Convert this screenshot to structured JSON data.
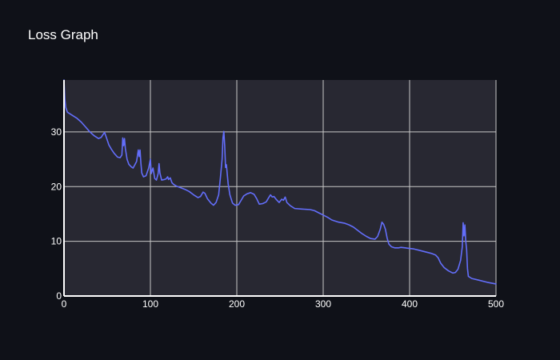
{
  "title": "Loss Graph",
  "colors": {
    "page_background": "#0f1118",
    "plot_background": "#282832",
    "grid": "#c8c8c8",
    "axis": "#ffffff",
    "text": "#ffffff",
    "line": "#636efa"
  },
  "chart_data": {
    "type": "line",
    "title": "Loss Graph",
    "xlabel": "",
    "ylabel": "",
    "xlim": [
      0,
      500
    ],
    "ylim": [
      0,
      39.5
    ],
    "x_ticks": [
      0,
      100,
      200,
      300,
      400,
      500
    ],
    "y_ticks": [
      0,
      10,
      20,
      30
    ],
    "grid": true,
    "legend": "none",
    "series": [
      {
        "color": "#636efa",
        "points": [
          [
            0,
            39.5
          ],
          [
            1,
            36
          ],
          [
            2,
            34.5
          ],
          [
            4,
            33.6
          ],
          [
            10,
            33
          ],
          [
            15,
            32.5
          ],
          [
            20,
            31.8
          ],
          [
            25,
            30.9
          ],
          [
            30,
            30
          ],
          [
            35,
            29.3
          ],
          [
            40,
            28.8
          ],
          [
            43,
            29
          ],
          [
            45,
            29.5
          ],
          [
            47,
            29.9
          ],
          [
            49,
            29
          ],
          [
            52,
            27.6
          ],
          [
            55,
            26.8
          ],
          [
            58,
            26.1
          ],
          [
            62,
            25.4
          ],
          [
            65,
            25.3
          ],
          [
            67,
            25.8
          ],
          [
            68,
            28.9
          ],
          [
            69,
            27.5
          ],
          [
            70,
            28.8
          ],
          [
            71,
            27
          ],
          [
            73,
            25
          ],
          [
            75,
            24.1
          ],
          [
            78,
            23.6
          ],
          [
            80,
            23.4
          ],
          [
            82,
            24
          ],
          [
            84,
            24.6
          ],
          [
            86,
            26.7
          ],
          [
            87,
            25.5
          ],
          [
            88,
            26.7
          ],
          [
            89,
            24.3
          ],
          [
            90,
            22.5
          ],
          [
            92,
            21.8
          ],
          [
            95,
            22
          ],
          [
            98,
            23.4
          ],
          [
            100,
            25
          ],
          [
            101,
            22.4
          ],
          [
            103,
            23.4
          ],
          [
            105,
            21.5
          ],
          [
            107,
            21.2
          ],
          [
            109,
            22.4
          ],
          [
            110,
            24.2
          ],
          [
            111,
            22.5
          ],
          [
            113,
            21.2
          ],
          [
            116,
            21.3
          ],
          [
            118,
            21.4
          ],
          [
            120,
            21.8
          ],
          [
            121,
            21.3
          ],
          [
            123,
            21.6
          ],
          [
            125,
            20.7
          ],
          [
            127,
            20.4
          ],
          [
            130,
            20.1
          ],
          [
            135,
            19.8
          ],
          [
            140,
            19.5
          ],
          [
            145,
            19.1
          ],
          [
            150,
            18.5
          ],
          [
            155,
            18
          ],
          [
            158,
            18.2
          ],
          [
            161,
            19
          ],
          [
            163,
            18.8
          ],
          [
            166,
            17.8
          ],
          [
            170,
            17
          ],
          [
            173,
            16.6
          ],
          [
            176,
            17.1
          ],
          [
            179,
            18.5
          ],
          [
            181,
            21.6
          ],
          [
            183,
            25
          ],
          [
            184,
            28.9
          ],
          [
            185,
            30.1
          ],
          [
            186,
            27.5
          ],
          [
            187,
            23.5
          ],
          [
            188,
            24
          ],
          [
            189,
            22.2
          ],
          [
            190,
            20.5
          ],
          [
            192,
            18.5
          ],
          [
            195,
            17
          ],
          [
            198,
            16.6
          ],
          [
            202,
            16.7
          ],
          [
            205,
            17.5
          ],
          [
            208,
            18.3
          ],
          [
            212,
            18.7
          ],
          [
            216,
            18.9
          ],
          [
            220,
            18.6
          ],
          [
            223,
            17.8
          ],
          [
            226,
            16.8
          ],
          [
            230,
            16.9
          ],
          [
            234,
            17.2
          ],
          [
            237,
            18
          ],
          [
            239,
            18.5
          ],
          [
            241,
            18.1
          ],
          [
            243,
            18.2
          ],
          [
            246,
            17.6
          ],
          [
            249,
            17.1
          ],
          [
            252,
            17.7
          ],
          [
            254,
            17.5
          ],
          [
            256,
            18.1
          ],
          [
            258,
            17.1
          ],
          [
            262,
            16.5
          ],
          [
            267,
            16
          ],
          [
            275,
            15.9
          ],
          [
            285,
            15.8
          ],
          [
            290,
            15.6
          ],
          [
            295,
            15.2
          ],
          [
            300,
            14.8
          ],
          [
            305,
            14.4
          ],
          [
            310,
            13.9
          ],
          [
            318,
            13.5
          ],
          [
            325,
            13.3
          ],
          [
            330,
            13
          ],
          [
            335,
            12.6
          ],
          [
            340,
            12
          ],
          [
            345,
            11.4
          ],
          [
            350,
            10.9
          ],
          [
            355,
            10.5
          ],
          [
            360,
            10.4
          ],
          [
            363,
            10.9
          ],
          [
            366,
            12.2
          ],
          [
            368,
            13.5
          ],
          [
            370,
            13.1
          ],
          [
            372,
            12.2
          ],
          [
            374,
            10.6
          ],
          [
            376,
            9.5
          ],
          [
            379,
            9
          ],
          [
            383,
            8.8
          ],
          [
            387,
            8.8
          ],
          [
            390,
            8.9
          ],
          [
            395,
            8.8
          ],
          [
            400,
            8.7
          ],
          [
            405,
            8.6
          ],
          [
            410,
            8.4
          ],
          [
            415,
            8.2
          ],
          [
            420,
            8
          ],
          [
            425,
            7.8
          ],
          [
            430,
            7.5
          ],
          [
            433,
            7
          ],
          [
            436,
            6
          ],
          [
            440,
            5.2
          ],
          [
            445,
            4.6
          ],
          [
            450,
            4.2
          ],
          [
            453,
            4.3
          ],
          [
            456,
            4.9
          ],
          [
            459,
            6.5
          ],
          [
            461,
            9
          ],
          [
            462,
            13.4
          ],
          [
            463,
            11
          ],
          [
            464,
            13
          ],
          [
            465,
            10
          ],
          [
            466,
            8.5
          ],
          [
            467,
            5
          ],
          [
            468,
            3.6
          ],
          [
            472,
            3.2
          ],
          [
            480,
            2.9
          ],
          [
            490,
            2.5
          ],
          [
            500,
            2.2
          ]
        ]
      }
    ]
  }
}
